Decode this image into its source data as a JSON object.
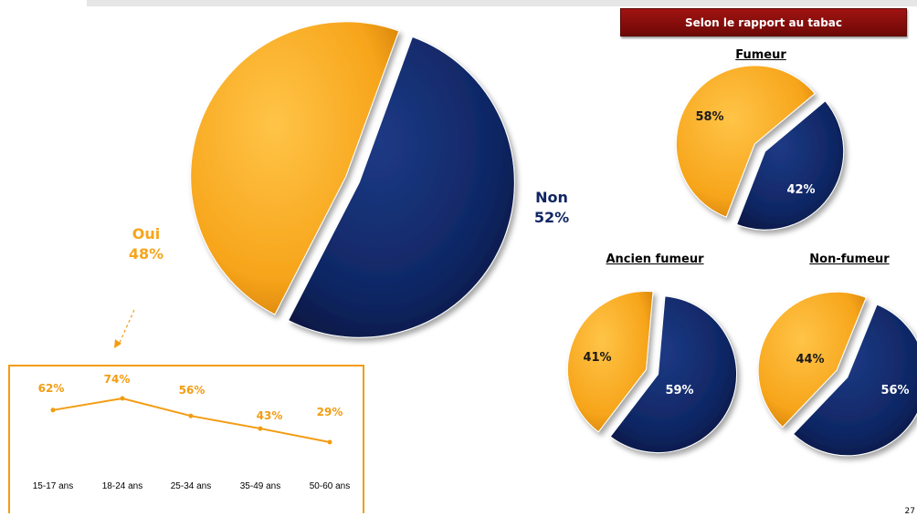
{
  "header": {
    "banner_text": "Selon le rapport au tabac"
  },
  "main_pie": {
    "oui_label": "Oui",
    "oui_value": "48%",
    "non_label": "Non",
    "non_value": "52%"
  },
  "small_pies": [
    {
      "title": "Fumeur",
      "label_a": "58%",
      "label_b": "42%"
    },
    {
      "title": "Ancien fumeur",
      "label_a": "41%",
      "label_b": "59%"
    },
    {
      "title": "Non-fumeur",
      "label_a": "44%",
      "label_b": "56%"
    }
  ],
  "page_number": "27",
  "colors": {
    "orange": "#f7a51b",
    "navy": "#0f2663",
    "line": "#f39c12",
    "banner": "#8b0c0a"
  },
  "chart_data": [
    {
      "type": "pie",
      "labels": [
        "Oui",
        "Non"
      ],
      "values": [
        48,
        52
      ]
    },
    {
      "type": "pie",
      "title": "Fumeur",
      "labels": [
        "Oui",
        "Non"
      ],
      "values": [
        58,
        42
      ]
    },
    {
      "type": "pie",
      "title": "Ancien fumeur",
      "labels": [
        "Oui",
        "Non"
      ],
      "values": [
        41,
        59
      ]
    },
    {
      "type": "pie",
      "title": "Non-fumeur",
      "labels": [
        "Oui",
        "Non"
      ],
      "values": [
        44,
        56
      ]
    },
    {
      "type": "line",
      "categories": [
        "15-17 ans",
        "18-24 ans",
        "25-34 ans",
        "35-49 ans",
        "50-60 ans"
      ],
      "values": [
        62,
        74,
        56,
        43,
        29
      ],
      "data_labels": [
        "62%",
        "74%",
        "56%",
        "43%",
        "29%"
      ]
    }
  ]
}
